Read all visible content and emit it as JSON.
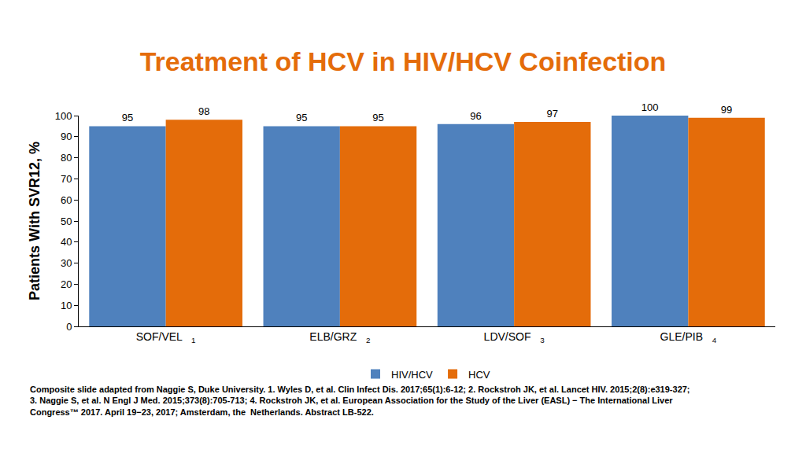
{
  "chart_data": {
    "type": "bar",
    "title": "Treatment of HCV in HIV/HCV Coinfection",
    "y_label": "Patients With SVR12, %",
    "categories": [
      "SOF/VEL",
      "ELB/GRZ",
      "LDV/SOF",
      "GLE/PIB"
    ],
    "category_refs": [
      "1",
      "2",
      "3",
      "4"
    ],
    "series": [
      {
        "name": "HIV/HCV",
        "color": "#4F81BD",
        "values": [
          95,
          95,
          96,
          100
        ]
      },
      {
        "name": "HCV",
        "color": "#E46C0A",
        "values": [
          98,
          95,
          97,
          99
        ]
      }
    ],
    "ylim": [
      0,
      100
    ],
    "yticks": [
      0,
      10,
      20,
      30,
      40,
      50,
      60,
      70,
      80,
      90,
      100
    ],
    "grid": false,
    "legend": "bottom",
    "data_labels": true,
    "footnote": [
      "Composite slide adapted from Naggie S, Duke University. 1. Wyles D, et al. Clin Infect Dis. 2017;65(1):6-12; 2. Rockstroh JK, et al. Lancet HIV. 2015;2(8):e319-327;",
      "3. Naggie S, et al. N Engl J Med. 2015;373(8):705-713; 4. Rockstroh JK, et al. European Association for the Study of the Liver (EASL) − The International Liver",
      "Congress™ 2017. April 19−23, 2017; Amsterdam, the  Netherlands. Abstract LB-522."
    ]
  }
}
